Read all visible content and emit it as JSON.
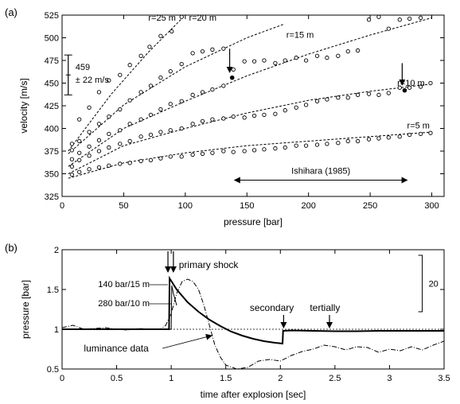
{
  "chart_data": [
    {
      "panel_label": "(a)",
      "type": "scatter",
      "xlabel": "pressure [bar]",
      "ylabel": "velocity [m/s]",
      "xlim": [
        0,
        310
      ],
      "ylim": [
        325,
        525
      ],
      "xticks": [
        0,
        50,
        100,
        150,
        200,
        250,
        300
      ],
      "yticks": [
        325,
        350,
        375,
        400,
        425,
        450,
        475,
        500,
        525
      ],
      "grid": false,
      "series": [
        {
          "name": "r=25 m",
          "x": [
            8,
            14,
            22,
            30,
            38,
            47,
            55,
            64,
            71,
            80,
            89,
            97
          ],
          "y": [
            383,
            410,
            423,
            440,
            453,
            459,
            470,
            480,
            490,
            502,
            507,
            523
          ],
          "fit_x": [
            5,
            40,
            70,
            100
          ],
          "fit_y": [
            375,
            438,
            484,
            525
          ]
        },
        {
          "name": "r=20 m",
          "x": [
            8,
            14,
            22,
            30,
            38,
            47,
            55,
            64,
            72,
            80,
            88,
            97,
            106,
            114,
            122,
            131,
            139
          ],
          "y": [
            376,
            386,
            396,
            405,
            413,
            421,
            431,
            440,
            447,
            456,
            463,
            471,
            483,
            485,
            487,
            488,
            465
          ],
          "fit_x": [
            5,
            50,
            100,
            150,
            180
          ],
          "fit_y": [
            372,
            426,
            468,
            500,
            515
          ]
        },
        {
          "name": "r=15 m",
          "x": [
            8,
            14,
            22,
            30,
            38,
            47,
            55,
            64,
            72,
            80,
            88,
            97,
            106,
            114,
            122,
            131,
            148,
            156,
            164,
            173,
            181,
            190,
            198,
            207,
            215,
            224,
            232,
            240,
            249,
            257,
            265,
            274,
            282,
            291
          ],
          "y": [
            366,
            373,
            380,
            387,
            394,
            398,
            405,
            410,
            415,
            421,
            427,
            430,
            437,
            440,
            443,
            447,
            474,
            474,
            475,
            472,
            475,
            478,
            475,
            480,
            478,
            480,
            485,
            486,
            520,
            523,
            510,
            520,
            521,
            522
          ],
          "fit_x": [
            5,
            50,
            100,
            150,
            200,
            250,
            300
          ],
          "fit_y": [
            358,
            400,
            430,
            458,
            482,
            503,
            522
          ]
        },
        {
          "name": "r=10 m",
          "x": [
            8,
            14,
            22,
            30,
            38,
            47,
            55,
            64,
            72,
            80,
            88,
            97,
            106,
            114,
            122,
            131,
            139,
            148,
            156,
            164,
            173,
            181,
            190,
            198,
            207,
            215,
            224,
            232,
            240,
            249,
            257,
            265,
            274,
            282,
            291,
            299
          ],
          "y": [
            358,
            365,
            370,
            375,
            379,
            383,
            386,
            391,
            393,
            396,
            398,
            400,
            405,
            408,
            410,
            411,
            413,
            412,
            414,
            415,
            416,
            420,
            423,
            426,
            430,
            432,
            434,
            434,
            437,
            438,
            437,
            439,
            445,
            445,
            446,
            450
          ],
          "fit_x": [
            5,
            50,
            100,
            150,
            200,
            250,
            300
          ],
          "fit_y": [
            350,
            381,
            400,
            417,
            431,
            441,
            449
          ]
        },
        {
          "name": "r=5 m",
          "x": [
            8,
            14,
            22,
            30,
            38,
            47,
            55,
            64,
            72,
            80,
            88,
            97,
            106,
            114,
            122,
            131,
            139,
            148,
            156,
            164,
            173,
            181,
            190,
            198,
            207,
            215,
            224,
            232,
            240,
            249,
            257,
            265,
            274,
            282,
            291,
            299
          ],
          "y": [
            349,
            352,
            355,
            357,
            359,
            361,
            362,
            364,
            365,
            367,
            369,
            369,
            371,
            372,
            373,
            375,
            374,
            375,
            376,
            377,
            378,
            379,
            381,
            381,
            382,
            383,
            384,
            386,
            386,
            388,
            389,
            390,
            391,
            393,
            394,
            395
          ],
          "fit_x": [
            5,
            50,
            100,
            150,
            200,
            250,
            300
          ],
          "fit_y": [
            345,
            362,
            373,
            381,
            386,
            391,
            396
          ]
        }
      ],
      "highlighted_points": [
        {
          "x": 138,
          "y": 456
        },
        {
          "x": 278,
          "y": 442
        }
      ],
      "arrows": [
        {
          "x": 136,
          "y_from": 488,
          "y_to": 462
        },
        {
          "x": 276,
          "y_from": 472,
          "y_to": 448
        }
      ],
      "errorbar": {
        "center": 459,
        "halfwidth": 22,
        "x": 5,
        "label_value": "459",
        "label_range": "± 22 m/s"
      },
      "range_annotation": {
        "label": "Ishihara (1985)",
        "x_from": 140,
        "x_to": 280,
        "y": 343
      }
    },
    {
      "panel_label": "(b)",
      "type": "line",
      "xlabel": "time after explosion [sec]",
      "ylabel": "pressure [bar]",
      "xlim": [
        0,
        3.5
      ],
      "ylim": [
        0.5,
        2
      ],
      "xticks": [
        0,
        0.5,
        1,
        1.5,
        2,
        2.5,
        3,
        3.5
      ],
      "yticks": [
        0.5,
        1,
        1.5,
        2
      ],
      "grid": false,
      "reference_line": 1,
      "series": [
        {
          "name": "140 bar/15 m",
          "x": [
            0,
            0.1,
            0.2,
            0.3,
            0.4,
            0.5,
            0.6,
            0.7,
            0.8,
            0.9,
            0.98,
            0.985,
            1.05,
            1.15,
            1.25,
            1.35,
            1.45,
            1.55,
            1.65,
            1.75,
            1.85,
            1.95,
            2.02,
            2.025,
            2.1,
            2.3,
            2.5,
            2.7,
            2.9,
            3.1,
            3.3,
            3.5
          ],
          "y": [
            1.0,
            1.0,
            1.0,
            1.0,
            1.0,
            1.0,
            1.0,
            1.0,
            1.0,
            1.0,
            1.0,
            1.64,
            1.5,
            1.34,
            1.22,
            1.12,
            1.04,
            0.97,
            0.92,
            0.88,
            0.85,
            0.83,
            0.82,
            0.98,
            0.985,
            0.98,
            0.975,
            0.975,
            0.98,
            0.98,
            0.98,
            0.98
          ]
        },
        {
          "name": "280 bar/10 m",
          "x": [
            0.95,
            1.0,
            1.005,
            1.02,
            1.04,
            1.05
          ],
          "y": [
            1.0,
            1.0,
            1.55,
            1.45,
            1.35,
            1.3
          ]
        },
        {
          "name": "luminance data",
          "x": [
            0,
            0.1,
            0.2,
            0.3,
            0.4,
            0.5,
            0.6,
            0.7,
            0.8,
            0.9,
            0.95,
            1.0,
            1.05,
            1.1,
            1.15,
            1.2,
            1.25,
            1.3,
            1.35,
            1.4,
            1.45,
            1.5,
            1.6,
            1.7,
            1.8,
            1.9,
            2.0,
            2.1,
            2.2,
            2.3,
            2.4,
            2.5,
            2.6,
            2.7,
            2.8,
            2.9,
            3.0,
            3.1,
            3.2,
            3.3,
            3.4,
            3.5
          ],
          "y": [
            1.02,
            1.05,
            1.0,
            1.01,
            1.02,
            1.0,
            0.99,
            1.01,
            1.0,
            1.0,
            1.05,
            1.2,
            1.45,
            1.6,
            1.63,
            1.6,
            1.5,
            1.3,
            1.05,
            0.8,
            0.65,
            0.55,
            0.5,
            0.52,
            0.6,
            0.62,
            0.6,
            0.67,
            0.72,
            0.75,
            0.8,
            0.78,
            0.74,
            0.78,
            0.77,
            0.71,
            0.75,
            0.73,
            0.78,
            0.74,
            0.8,
            0.85
          ]
        }
      ],
      "annotations": {
        "primary_shock": "primary shock",
        "secondary": "secondary",
        "tertially": "tertially",
        "label_140": "140 bar/15 m",
        "label_280": "280 bar/10 m",
        "luminance": "luminance data",
        "scale_value": "20",
        "scale_bracket": {
          "x": 3.3,
          "y_from": 1.93,
          "y_to": 1.22
        }
      },
      "arrows": [
        {
          "x": 0.97,
          "y_from": 1.98,
          "y_to": 1.72
        },
        {
          "x": 1.02,
          "y_from": 1.98,
          "y_to": 1.72
        },
        {
          "x": 2.03,
          "y_from": 1.18,
          "y_to": 1.02
        },
        {
          "x": 2.45,
          "y_from": 1.18,
          "y_to": 1.02
        }
      ]
    }
  ]
}
